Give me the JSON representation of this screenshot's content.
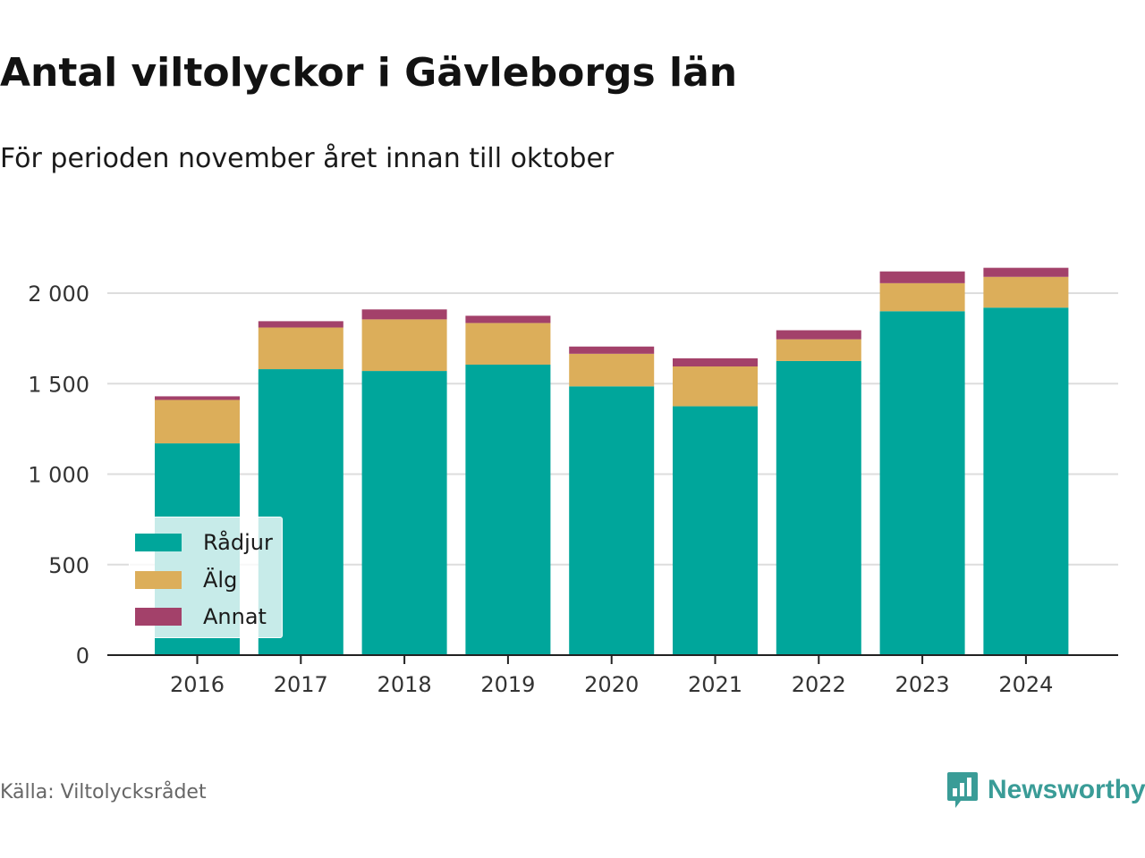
{
  "title": "Antal viltolyckor i Gävleborgs län",
  "subtitle": "För perioden november året innan till oktober",
  "source": "Källa: Viltolycksrådet",
  "brand": {
    "name": "Newsworthy",
    "icon": "newsworthy-logo-icon",
    "color": "#3a9c97"
  },
  "chart_data": {
    "type": "bar",
    "stacked": true,
    "categories": [
      "2016",
      "2017",
      "2018",
      "2019",
      "2020",
      "2021",
      "2022",
      "2023",
      "2024"
    ],
    "series": [
      {
        "name": "Rådjur",
        "color": "#00a69b",
        "values": [
          1170,
          1580,
          1570,
          1605,
          1485,
          1375,
          1625,
          1900,
          1920
        ]
      },
      {
        "name": "Älg",
        "color": "#dcae5a",
        "values": [
          240,
          230,
          285,
          230,
          180,
          220,
          120,
          155,
          170
        ]
      },
      {
        "name": "Annat",
        "color": "#a3416a",
        "values": [
          20,
          35,
          55,
          40,
          40,
          45,
          50,
          65,
          50
        ]
      }
    ],
    "ylim": [
      0,
      2200
    ],
    "yticks": [
      0,
      500,
      1000,
      1500,
      2000
    ],
    "ytick_labels": [
      "0",
      "500",
      "1 000",
      "1 500",
      "2 000"
    ],
    "xlabel": "",
    "ylabel": "",
    "grid": true,
    "legend_position": "bottom-left"
  }
}
